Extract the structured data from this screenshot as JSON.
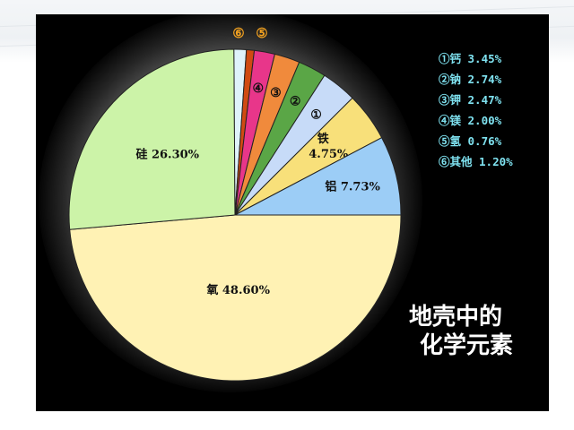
{
  "chart_data": {
    "type": "pie",
    "title": "地壳中的化学元素",
    "title_lines": [
      "地壳中的",
      "化学元素"
    ],
    "slices": [
      {
        "marker": "",
        "label": "氧",
        "value": 48.6,
        "color": "#fff2b4",
        "text": "氧 48.60%"
      },
      {
        "marker": "",
        "label": "硅",
        "value": 26.3,
        "color": "#ccf3a8",
        "text": "硅 26.30%"
      },
      {
        "marker": "⑥",
        "label": "其他",
        "value": 1.2,
        "color": "#dff2fb",
        "text": ""
      },
      {
        "marker": "⑤",
        "label": "氢",
        "value": 0.76,
        "color": "#d04a12",
        "text": ""
      },
      {
        "marker": "④",
        "label": "镁",
        "value": 2.0,
        "color": "#e8368a",
        "text": ""
      },
      {
        "marker": "③",
        "label": "钾",
        "value": 2.47,
        "color": "#f08a3c",
        "text": ""
      },
      {
        "marker": "②",
        "label": "钠",
        "value": 2.74,
        "color": "#5aa646",
        "text": ""
      },
      {
        "marker": "①",
        "label": "钙",
        "value": 3.45,
        "color": "#c7dbf8",
        "text": ""
      },
      {
        "marker": "",
        "label": "铁",
        "value": 4.75,
        "color": "#f8e07a",
        "text_lines": [
          "铁",
          "4.75%"
        ]
      },
      {
        "marker": "",
        "label": "铝",
        "value": 7.73,
        "color": "#9ccdf6",
        "text": "铝 7.73%"
      }
    ],
    "legend": [
      "①钙 3.45%",
      "②钠 2.74%",
      "③钾 2.47%",
      "④镁 2.00%",
      "⑤氢 0.76%",
      "⑥其他 1.20%"
    ],
    "legend_placement": "right",
    "top_markers": [
      "⑥",
      "⑤"
    ]
  }
}
